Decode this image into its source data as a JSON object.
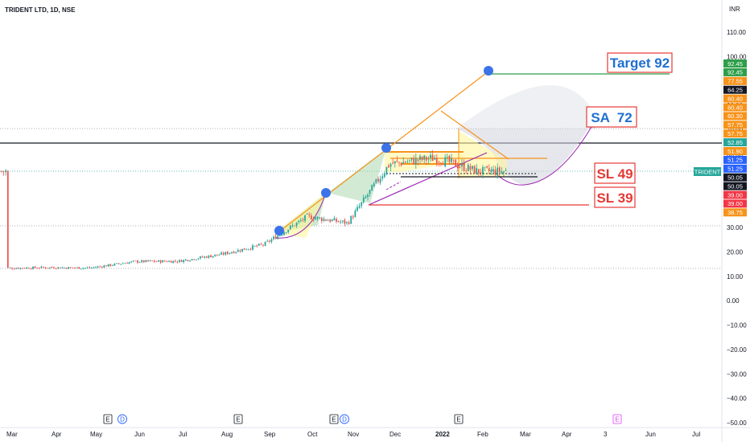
{
  "header": {
    "title": "TRIDENT LTD, 1D, NSE",
    "currency": "INR"
  },
  "chart_data": {
    "type": "candlestick",
    "title": "TRIDENT LTD, 1D, NSE",
    "ylim": [
      -50,
      120
    ],
    "y_ticks": [
      -50,
      -40,
      -30,
      -20,
      -10,
      0,
      10,
      20,
      30,
      40,
      50,
      60,
      70,
      80,
      90,
      100,
      110
    ],
    "y_tick_labels": [
      "−50.00",
      "−40.00",
      "−30.00",
      "−20.00",
      "−10.00",
      "0.00",
      "10.00",
      "20.00",
      "30.00",
      "40.00",
      "50.00",
      "60.00",
      "70.00",
      "80.00",
      "90.00",
      "100.00",
      "110.00"
    ],
    "x_labels": [
      "Mar",
      "Apr",
      "May",
      "Jun",
      "Jul",
      "Aug",
      "Sep",
      "Oct",
      "Nov",
      "Dec",
      "2022",
      "Feb",
      "Mar",
      "Apr",
      "3",
      "Jun",
      "Jul"
    ],
    "x_positions": [
      8,
      64,
      112,
      167,
      222,
      275,
      328,
      382,
      432,
      484,
      541,
      593,
      646,
      698,
      750,
      802,
      860
    ],
    "price_path": [
      [
        "Mar",
        13.3
      ],
      [
        "Apr",
        13.6
      ],
      [
        "May",
        13.4
      ],
      [
        "Jun",
        16.0
      ],
      [
        "Jul",
        16.2
      ],
      [
        "Aug",
        19.0
      ],
      [
        "Sep",
        23.0
      ],
      [
        "Oct",
        34.5
      ],
      [
        "Nov",
        31.8
      ],
      [
        "Dec",
        56.0
      ],
      [
        "2022",
        58.5
      ],
      [
        "Feb",
        53.0
      ]
    ],
    "current_price": 52.85,
    "grid": false,
    "price_labels": [
      {
        "value": "92.45",
        "color": "#2e9e4a"
      },
      {
        "value": "92.45",
        "color": "#2e9e4a"
      },
      {
        "value": "77.55",
        "color": "#f7931a"
      },
      {
        "value": "64.25",
        "color": "#131722"
      },
      {
        "value": "60.40",
        "color": "#f7931a"
      },
      {
        "value": "60.40",
        "color": "#f7931a"
      },
      {
        "value": "60.30",
        "color": "#f7931a"
      },
      {
        "value": "57.75",
        "color": "#f7931a"
      },
      {
        "value": "57.75",
        "color": "#f7931a"
      },
      {
        "value": "52.85",
        "color": "#26a69a"
      },
      {
        "value": "51.90",
        "color": "#f7931a"
      },
      {
        "value": "51.25",
        "color": "#2962ff"
      },
      {
        "value": "51.25",
        "color": "#2962ff"
      },
      {
        "value": "50.05",
        "color": "#131722"
      },
      {
        "value": "50.05",
        "color": "#131722"
      },
      {
        "value": "39.00",
        "color": "#f23645"
      },
      {
        "value": "39.00",
        "color": "#f23645"
      },
      {
        "value": "38.75",
        "color": "#f7931a"
      }
    ],
    "symbol_badge": "TRIDENT",
    "annotations": [
      {
        "text": "Target 92"
      },
      {
        "text": "SA  72"
      },
      {
        "text": "SL 49"
      },
      {
        "text": "SL 39"
      }
    ],
    "event_markers": [
      "E",
      "D",
      "E",
      "E",
      "D",
      "E",
      "E"
    ]
  },
  "colors": {
    "up": "#26a69a",
    "down": "#ef5350",
    "trend": "#f7931a",
    "target": "#2e9e4a",
    "stop": "#e53935",
    "annotation": "#1e6fd0",
    "box": "#e53935",
    "circle": "#3b73e8"
  }
}
